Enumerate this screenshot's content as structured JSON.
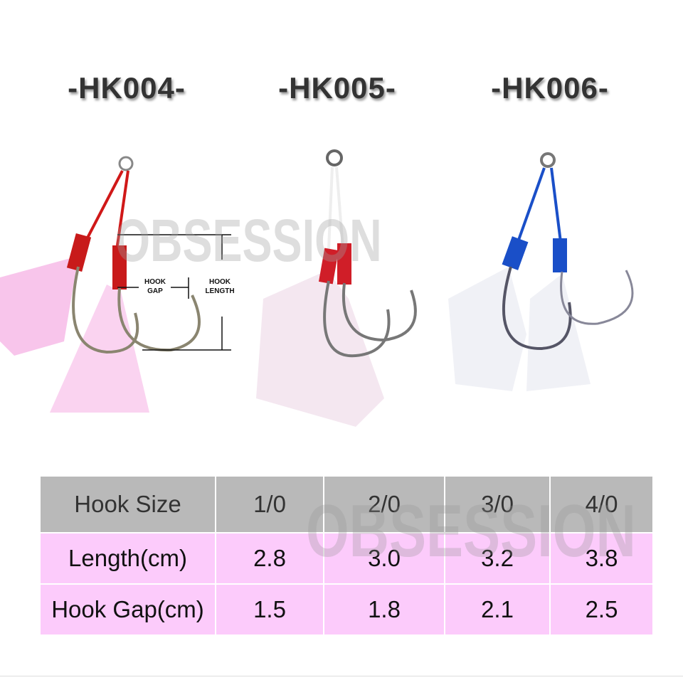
{
  "models": [
    "-HK004-",
    "-HK005-",
    "-HK006-"
  ],
  "watermark": "OBSESSION",
  "diagram_labels": {
    "hook_gap": [
      "HOOK",
      "GAP"
    ],
    "hook_length": [
      "HOOK",
      "LENGTH"
    ]
  },
  "colors": {
    "hk004_tube": "#c81a1a",
    "hk005_tube": "#d01e28",
    "hk006_tube": "#1a4fc8",
    "header_bg": "#b9b9b9",
    "row_bg": "#fccbfb"
  },
  "table": {
    "header": {
      "label": "Hook Size",
      "values": [
        "1/0",
        "2/0",
        "3/0",
        "4/0"
      ]
    },
    "rows": [
      {
        "label": "Length(cm)",
        "values": [
          "2.8",
          "3.0",
          "3.2",
          "3.8"
        ]
      },
      {
        "label": "Hook Gap(cm)",
        "values": [
          "1.5",
          "1.8",
          "2.1",
          "2.5"
        ]
      }
    ]
  }
}
